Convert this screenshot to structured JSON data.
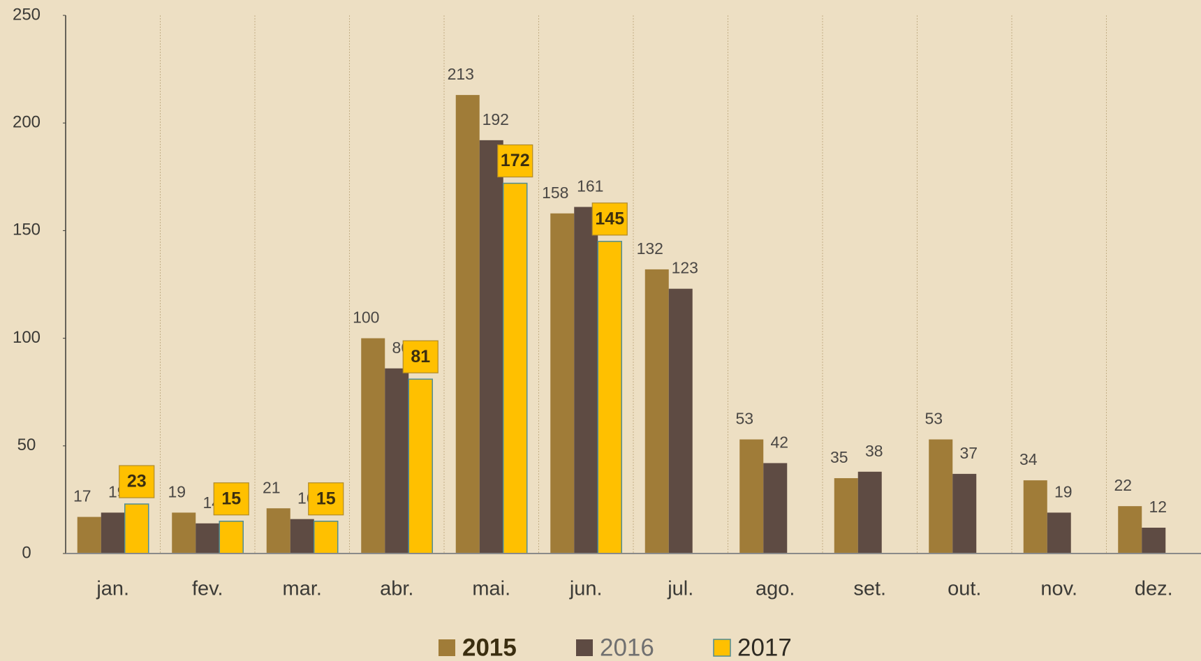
{
  "chart_data": {
    "type": "bar",
    "categories": [
      "jan.",
      "fev.",
      "mar.",
      "abr.",
      "mai.",
      "jun.",
      "jul.",
      "ago.",
      "set.",
      "out.",
      "nov.",
      "dez."
    ],
    "series": [
      {
        "name": "2015",
        "color": "#a07c38",
        "values": [
          17,
          19,
          21,
          100,
          213,
          158,
          132,
          53,
          35,
          53,
          34,
          22
        ]
      },
      {
        "name": "2016",
        "color": "#5e4b43",
        "values": [
          19,
          14,
          16,
          86,
          192,
          161,
          123,
          42,
          38,
          37,
          19,
          12
        ]
      },
      {
        "name": "2017",
        "color": "#ffc000",
        "values": [
          23,
          15,
          15,
          81,
          172,
          145,
          null,
          null,
          null,
          null,
          null,
          null
        ]
      }
    ],
    "ylim": [
      0,
      250
    ],
    "yticks": [
      0,
      50,
      100,
      150,
      200,
      250
    ],
    "legend": "bottom"
  }
}
